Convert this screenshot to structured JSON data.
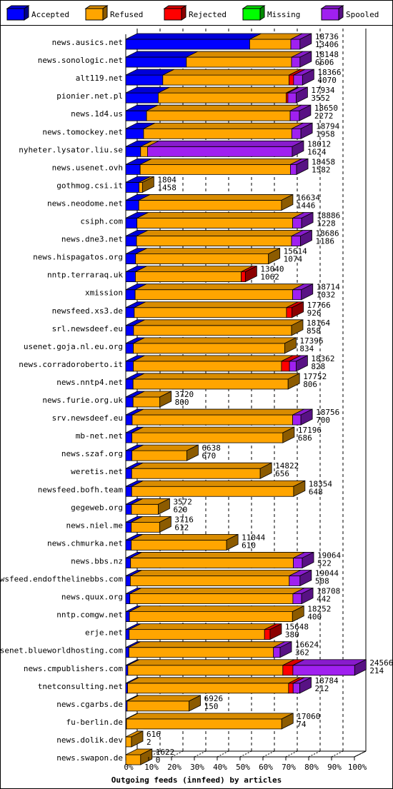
{
  "chart_data": {
    "type": "bar",
    "stacked": true,
    "orientation": "horizontal",
    "title": "",
    "xlabel": "Outgoing feeds (innfeed) by articles",
    "ylabel": "",
    "xlim": [
      0,
      100
    ],
    "x_ticks": [
      "0%",
      "10%",
      "20%",
      "30%",
      "40%",
      "50%",
      "60%",
      "70%",
      "80%",
      "90%",
      "100%"
    ],
    "grid": true,
    "legend_position": "top",
    "series": [
      {
        "name": "Accepted",
        "color": "#0000ff"
      },
      {
        "name": "Refused",
        "color": "#ffa500"
      },
      {
        "name": "Rejected",
        "color": "#ff0000"
      },
      {
        "name": "Missing",
        "color": "#00ff00"
      },
      {
        "name": "Spooled",
        "color": "#a020f0"
      }
    ],
    "rows": [
      {
        "host": "news.ausics.net",
        "offered": "18736",
        "accepted": "13406",
        "pct": [
          54.2,
          18.0,
          0,
          0,
          4.0
        ]
      },
      {
        "host": "news.sonologic.net",
        "offered": "18148",
        "accepted": "6606",
        "pct": [
          26.5,
          46.0,
          0,
          0,
          3.7
        ]
      },
      {
        "host": "alt119.net",
        "offered": "18366",
        "accepted": "4070",
        "pct": [
          16.2,
          55.2,
          2.0,
          0,
          3.9
        ]
      },
      {
        "host": "pionier.net.pl",
        "offered": "17934",
        "accepted": "3552",
        "pct": [
          14.2,
          56.0,
          0.7,
          0,
          3.6
        ]
      },
      {
        "host": "news.1d4.us",
        "offered": "18650",
        "accepted": "2272",
        "pct": [
          9.1,
          62.8,
          0,
          0,
          4.0
        ]
      },
      {
        "host": "news.tomockey.net",
        "offered": "18794",
        "accepted": "1958",
        "pct": [
          7.8,
          64.8,
          0,
          0,
          4.0
        ]
      },
      {
        "host": "nyheter.lysator.liu.se",
        "offered": "18012",
        "accepted": "1624",
        "pct": [
          6.5,
          3.0,
          0,
          0,
          63.3
        ]
      },
      {
        "host": "news.usenet.ovh",
        "offered": "18458",
        "accepted": "1582",
        "pct": [
          6.3,
          65.7,
          0,
          0,
          2.7
        ]
      },
      {
        "host": "gothmog.csi.it",
        "offered": "1804",
        "accepted": "1458",
        "pct": [
          5.8,
          1.5,
          0,
          0,
          0
        ]
      },
      {
        "host": "news.neodome.net",
        "offered": "16634",
        "accepted": "1446",
        "pct": [
          5.7,
          62.4,
          0,
          0,
          0
        ]
      },
      {
        "host": "csiph.com",
        "offered": "18886",
        "accepted": "1228",
        "pct": [
          4.9,
          68.1,
          0,
          0,
          3.9
        ]
      },
      {
        "host": "news.dne3.net",
        "offered": "18686",
        "accepted": "1186",
        "pct": [
          4.7,
          67.8,
          0,
          0,
          3.9
        ]
      },
      {
        "host": "news.hispagatos.org",
        "offered": "15614",
        "accepted": "1074",
        "pct": [
          4.3,
          58.1,
          0,
          0,
          0
        ]
      },
      {
        "host": "nntp.terraraq.uk",
        "offered": "13040",
        "accepted": "1062",
        "pct": [
          4.2,
          46.3,
          1.8,
          0,
          0
        ]
      },
      {
        "host": "xmission",
        "offered": "18714",
        "accepted": "1032",
        "pct": [
          4.1,
          68.9,
          0,
          0,
          3.8
        ]
      },
      {
        "host": "newsfeed.xs3.de",
        "offered": "17766",
        "accepted": "926",
        "pct": [
          3.7,
          66.6,
          2.4,
          0,
          0
        ]
      },
      {
        "host": "srl.newsdeef.eu",
        "offered": "18164",
        "accepted": "858",
        "pct": [
          3.4,
          69.1,
          0,
          0,
          0
        ]
      },
      {
        "host": "usenet.goja.nl.eu.org",
        "offered": "17396",
        "accepted": "834",
        "pct": [
          3.3,
          66.2,
          0,
          0,
          0
        ]
      },
      {
        "host": "news.corradoroberto.it",
        "offered": "18362",
        "accepted": "828",
        "pct": [
          3.3,
          64.8,
          3.5,
          0,
          2.9
        ]
      },
      {
        "host": "news.nntp4.net",
        "offered": "17752",
        "accepted": "806",
        "pct": [
          3.2,
          67.8,
          0,
          0,
          0
        ]
      },
      {
        "host": "news.furie.org.uk",
        "offered": "3720",
        "accepted": "800",
        "pct": [
          3.2,
          11.7,
          0,
          0,
          0
        ]
      },
      {
        "host": "srv.newsdeef.eu",
        "offered": "18756",
        "accepted": "700",
        "pct": [
          2.8,
          70.2,
          0,
          0,
          3.6
        ]
      },
      {
        "host": "mb-net.net",
        "offered": "17196",
        "accepted": "686",
        "pct": [
          2.7,
          66.0,
          0,
          0,
          0
        ]
      },
      {
        "host": "news.szaf.org",
        "offered": "6638",
        "accepted": "670",
        "pct": [
          2.7,
          24.0,
          0,
          0,
          0
        ]
      },
      {
        "host": "weretis.net",
        "offered": "14822",
        "accepted": "656",
        "pct": [
          2.6,
          56.2,
          0,
          0,
          0
        ]
      },
      {
        "host": "newsfeed.bofh.team",
        "offered": "18354",
        "accepted": "648",
        "pct": [
          2.6,
          70.8,
          0,
          0,
          0
        ]
      },
      {
        "host": "gegeweb.org",
        "offered": "3572",
        "accepted": "620",
        "pct": [
          2.5,
          11.7,
          0,
          0,
          0
        ]
      },
      {
        "host": "news.niel.me",
        "offered": "3716",
        "accepted": "612",
        "pct": [
          2.4,
          12.4,
          0,
          0,
          0
        ]
      },
      {
        "host": "news.chmurka.net",
        "offered": "11044",
        "accepted": "610",
        "pct": [
          2.4,
          41.7,
          0,
          0,
          0
        ]
      },
      {
        "host": "news.bbs.nz",
        "offered": "19064",
        "accepted": "522",
        "pct": [
          2.1,
          71.2,
          0,
          0,
          3.9
        ]
      },
      {
        "host": "newsfeed.endofthelinebbs.com",
        "offered": "19044",
        "accepted": "508",
        "pct": [
          2.0,
          69.5,
          0,
          0,
          4.7
        ]
      },
      {
        "host": "news.quux.org",
        "offered": "18708",
        "accepted": "442",
        "pct": [
          1.8,
          71.3,
          0,
          0,
          3.8
        ]
      },
      {
        "host": "nntp.comgw.net",
        "offered": "18252",
        "accepted": "400",
        "pct": [
          1.6,
          71.3,
          0,
          0,
          0
        ]
      },
      {
        "host": "erje.net",
        "offered": "15648",
        "accepted": "380",
        "pct": [
          1.5,
          59.2,
          2.4,
          0,
          0
        ]
      },
      {
        "host": "usenet.blueworldhosting.com",
        "offered": "16624",
        "accepted": "362",
        "pct": [
          1.4,
          63.2,
          0,
          0,
          2.9
        ]
      },
      {
        "host": "news.cmpublishers.com",
        "offered": "24566",
        "accepted": "214",
        "pct": [
          0.9,
          67.8,
          4.4,
          0,
          27.0
        ]
      },
      {
        "host": "tnetconsulting.net",
        "offered": "18784",
        "accepted": "212",
        "pct": [
          0.8,
          70.4,
          2.0,
          0,
          2.9
        ]
      },
      {
        "host": "news.cgarbs.de",
        "offered": "6926",
        "accepted": "150",
        "pct": [
          0.6,
          27.1,
          0,
          0,
          0
        ]
      },
      {
        "host": "fu-berlin.de",
        "offered": "17060",
        "accepted": "74",
        "pct": [
          0.3,
          67.9,
          0,
          0,
          0
        ]
      },
      {
        "host": "news.dolik.dev",
        "offered": "616",
        "accepted": "2",
        "pct": [
          0,
          2.5,
          0,
          0,
          0
        ]
      },
      {
        "host": "news.swapon.de",
        "offered": "1622",
        "accepted": "0",
        "pct": [
          0,
          6.5,
          0,
          0,
          0
        ]
      }
    ]
  }
}
